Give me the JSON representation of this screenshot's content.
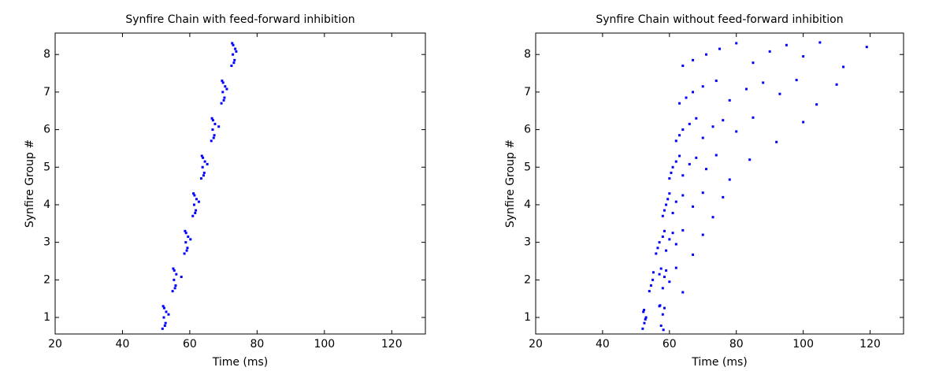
{
  "chart_data": [
    {
      "type": "scatter",
      "title": "Synfire Chain with feed-forward inhibition",
      "xlabel": "Time (ms)",
      "ylabel": "Synfire Group #",
      "color": "#0000ff",
      "xlim": [
        20,
        130
      ],
      "ylim": [
        0.56,
        8.57
      ],
      "xticks": [
        20,
        40,
        60,
        80,
        100,
        120
      ],
      "yticks": [
        1,
        2,
        3,
        4,
        5,
        6,
        7,
        8
      ],
      "x": [
        51.9,
        52.8,
        52.3,
        53.0,
        52.1,
        52.6,
        53.7,
        52.4,
        54.9,
        55.8,
        55.3,
        56.0,
        55.1,
        55.6,
        57.5,
        55.4,
        58.4,
        59.3,
        58.8,
        59.5,
        58.6,
        59.1,
        60.2,
        58.9,
        60.9,
        61.8,
        61.3,
        62.0,
        61.1,
        61.6,
        62.7,
        61.4,
        63.4,
        64.3,
        63.8,
        64.5,
        63.6,
        64.1,
        65.2,
        63.9,
        66.4,
        67.3,
        66.8,
        67.5,
        66.6,
        67.1,
        68.6,
        66.9,
        69.4,
        70.3,
        69.8,
        70.5,
        69.6,
        70.1,
        71.0,
        69.9,
        72.4,
        73.3,
        72.8,
        73.5,
        72.6,
        73.1,
        73.8,
        72.9
      ],
      "y": [
        0.7,
        0.85,
        1,
        1.15,
        1.3,
        0.78,
        1.08,
        1.25,
        1.7,
        1.85,
        2,
        2.15,
        2.3,
        1.78,
        2.08,
        2.25,
        2.7,
        2.85,
        3,
        3.15,
        3.3,
        2.78,
        3.08,
        3.25,
        3.7,
        3.85,
        4,
        4.15,
        4.3,
        3.78,
        4.08,
        4.25,
        4.7,
        4.85,
        5,
        5.15,
        5.3,
        4.78,
        5.08,
        5.25,
        5.7,
        5.85,
        6,
        6.15,
        6.3,
        5.78,
        6.08,
        6.25,
        6.7,
        6.85,
        7,
        7.15,
        7.3,
        6.78,
        7.08,
        7.25,
        7.7,
        7.85,
        8,
        8.15,
        8.3,
        7.78,
        8.08,
        8.25
      ]
    },
    {
      "type": "scatter",
      "title": "Synfire Chain without feed-forward inhibition",
      "xlabel": "Time (ms)",
      "ylabel": "Synfire Group #",
      "color": "#0000ff",
      "xlim": [
        20,
        130
      ],
      "ylim": [
        0.56,
        8.57
      ],
      "xticks": [
        20,
        40,
        60,
        80,
        100,
        120
      ],
      "yticks": [
        1,
        2,
        3,
        4,
        5,
        6,
        7,
        8
      ],
      "x": [
        52,
        52.5,
        53,
        52.2,
        57,
        57.5,
        58,
        58.5,
        52.8,
        57.2,
        58.2,
        52.4,
        54,
        54.5,
        55,
        57,
        57.5,
        58,
        58.5,
        59,
        60,
        62,
        64,
        55.2,
        56,
        56.5,
        57,
        58,
        58.5,
        59,
        60,
        61,
        62,
        64,
        67,
        70,
        58,
        58.5,
        59,
        59.5,
        60,
        61,
        62,
        64,
        67,
        70,
        73,
        76,
        60,
        60.5,
        61,
        62,
        63,
        64,
        66,
        68,
        71,
        74,
        78,
        84,
        62,
        63,
        64,
        66,
        68,
        70,
        73,
        76,
        80,
        85,
        92,
        100,
        63,
        65,
        67,
        70,
        74,
        78,
        83,
        88,
        93,
        98,
        104,
        110,
        64,
        67,
        71,
        75,
        80,
        85,
        90,
        95,
        100,
        105,
        112,
        119
      ],
      "y": [
        0.7,
        0.85,
        1,
        1.15,
        1.3,
        0.78,
        1.08,
        1.25,
        0.95,
        1.32,
        0.67,
        1.2,
        1.7,
        1.85,
        2,
        2.15,
        2.3,
        1.78,
        2.08,
        2.25,
        1.95,
        2.32,
        1.67,
        2.2,
        2.7,
        2.85,
        3,
        3.15,
        3.3,
        2.78,
        3.08,
        3.25,
        2.95,
        3.32,
        2.67,
        3.2,
        3.7,
        3.85,
        4,
        4.15,
        4.3,
        3.78,
        4.08,
        4.25,
        3.95,
        4.32,
        3.67,
        4.2,
        4.7,
        4.85,
        5,
        5.15,
        5.3,
        4.78,
        5.08,
        5.25,
        4.95,
        5.32,
        4.67,
        5.2,
        5.7,
        5.85,
        6,
        6.15,
        6.3,
        5.78,
        6.08,
        6.25,
        5.95,
        6.32,
        5.67,
        6.2,
        6.7,
        6.85,
        7,
        7.15,
        7.3,
        6.78,
        7.08,
        7.25,
        6.95,
        7.32,
        6.67,
        7.2,
        7.7,
        7.85,
        8,
        8.15,
        8.3,
        7.78,
        8.08,
        8.25,
        7.95,
        8.32,
        7.67,
        8.2
      ]
    }
  ]
}
